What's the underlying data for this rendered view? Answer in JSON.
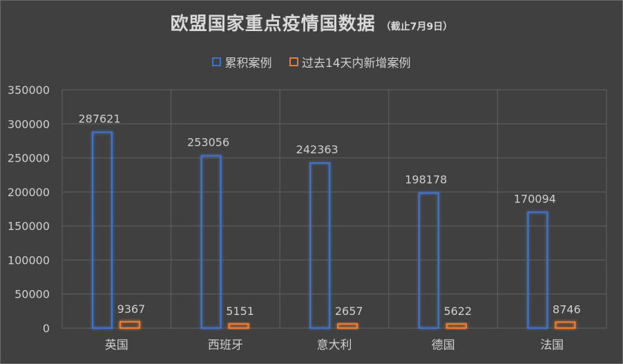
{
  "chart_data": {
    "type": "bar",
    "title": "欧盟国家重点疫情国数据",
    "subtitle": "（截止7月9日）",
    "categories": [
      "英国",
      "西班牙",
      "意大利",
      "德国",
      "法国"
    ],
    "series": [
      {
        "name": "累积案例",
        "values": [
          287621,
          253056,
          242363,
          198178,
          170094
        ],
        "color": "#4472c4"
      },
      {
        "name": "过去14天内新增案例",
        "values": [
          9367,
          5151,
          2657,
          5622,
          8746
        ],
        "color": "#ed7d31"
      }
    ],
    "ylim": [
      0,
      350000
    ],
    "yticks": [
      "0",
      "50000",
      "100000",
      "150000",
      "200000",
      "250000",
      "300000",
      "350000"
    ],
    "grid": true,
    "legend_position": "top",
    "xlabel": "",
    "ylabel": ""
  }
}
